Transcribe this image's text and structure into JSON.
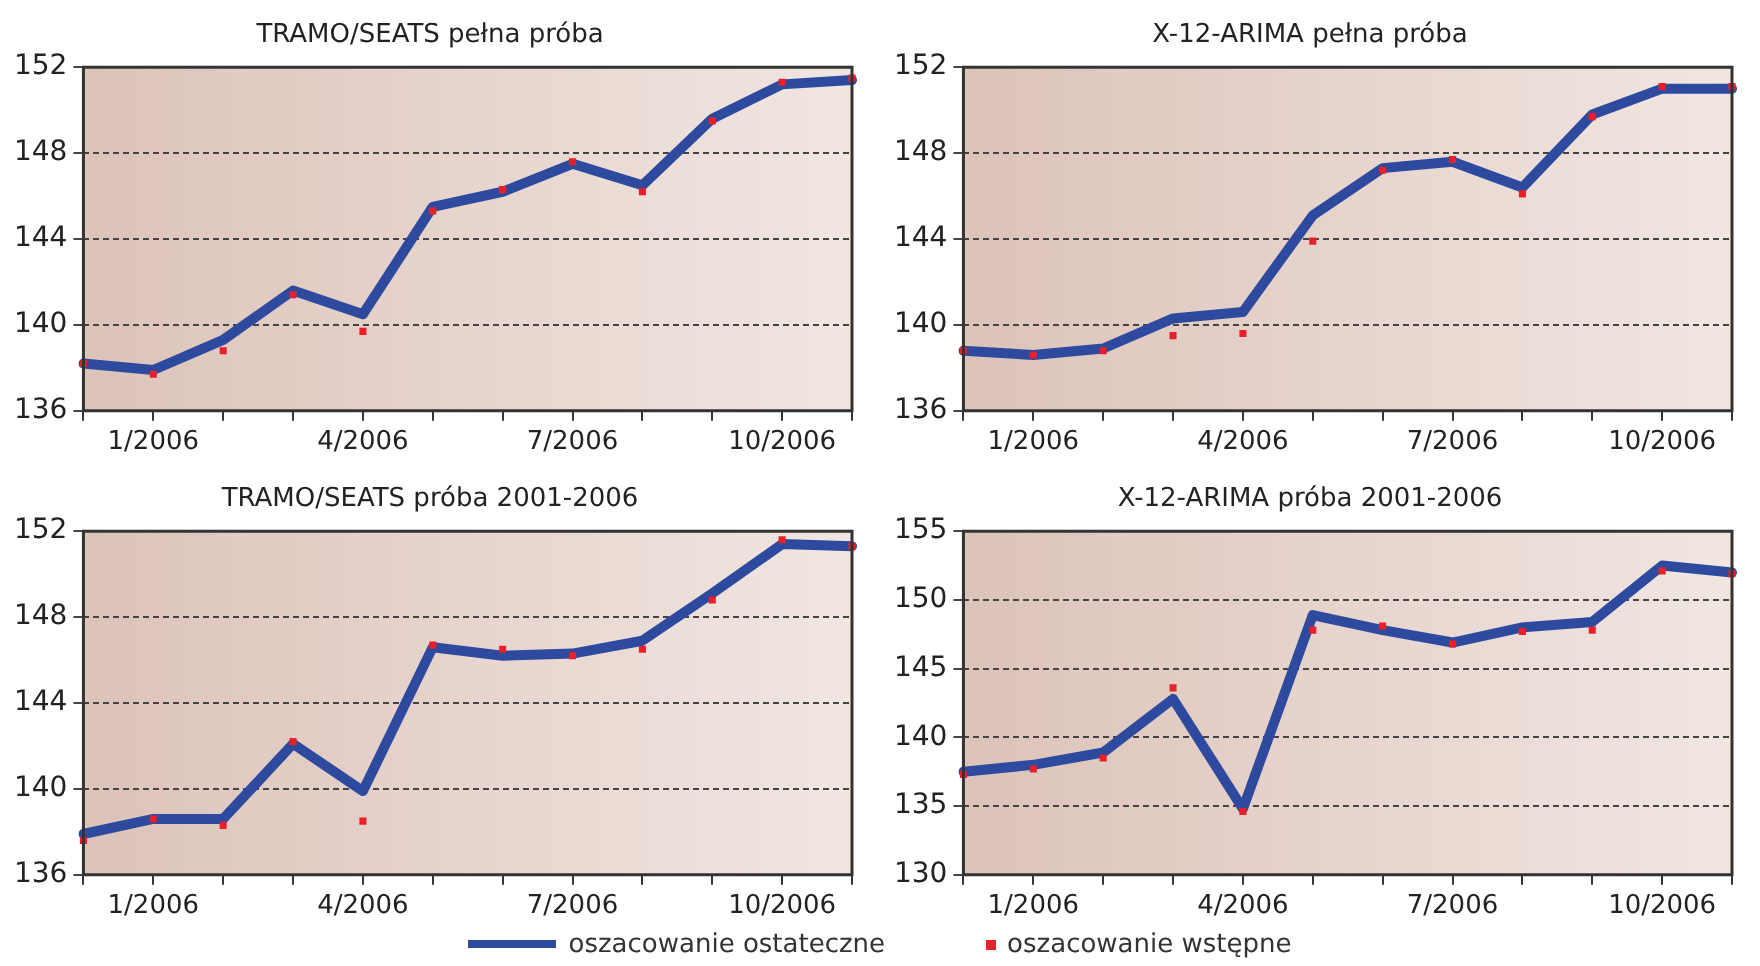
{
  "chart_data": [
    {
      "type": "line",
      "title": "TRAMO/SEATS pełna próba",
      "categories": [
        null,
        "1/2006",
        null,
        null,
        "4/2006",
        null,
        null,
        "7/2006",
        null,
        null,
        "10/2006",
        null
      ],
      "ylim": [
        136,
        152
      ],
      "yticks": [
        136,
        140,
        144,
        148,
        152
      ],
      "grid": "y",
      "series": [
        {
          "type": "line",
          "marker": "none",
          "color": "#2e4a9e",
          "values": [
            138.2,
            137.9,
            139.3,
            141.6,
            140.5,
            145.5,
            146.2,
            147.5,
            146.5,
            149.6,
            151.2,
            151.4
          ]
        },
        {
          "type": "scatter",
          "marker": "square",
          "color": "#e8202a",
          "values": [
            138.2,
            137.7,
            138.8,
            141.4,
            139.7,
            145.3,
            146.3,
            147.6,
            146.2,
            149.5,
            151.3,
            151.5
          ]
        }
      ]
    },
    {
      "type": "line",
      "title": "X-12-ARIMA pełna próba",
      "categories": [
        null,
        "1/2006",
        null,
        null,
        "4/2006",
        null,
        null,
        "7/2006",
        null,
        null,
        "10/2006",
        null
      ],
      "ylim": [
        136,
        152
      ],
      "yticks": [
        136,
        140,
        144,
        148,
        152
      ],
      "grid": "y",
      "series": [
        {
          "type": "line",
          "marker": "none",
          "color": "#2e4a9e",
          "values": [
            138.8,
            138.6,
            138.9,
            140.3,
            140.6,
            145.1,
            147.3,
            147.6,
            146.4,
            149.8,
            151.0,
            151.0
          ]
        },
        {
          "type": "scatter",
          "marker": "square",
          "color": "#e8202a",
          "values": [
            138.8,
            138.6,
            138.8,
            139.5,
            139.6,
            143.9,
            147.2,
            147.7,
            146.1,
            149.7,
            151.1,
            151.1
          ]
        }
      ]
    },
    {
      "type": "line",
      "title": "TRAMO/SEATS próba 2001-2006",
      "categories": [
        null,
        "1/2006",
        null,
        null,
        "4/2006",
        null,
        null,
        "7/2006",
        null,
        null,
        "10/2006",
        null
      ],
      "ylim": [
        136,
        152
      ],
      "yticks": [
        136,
        140,
        144,
        148,
        152
      ],
      "grid": "y",
      "series": [
        {
          "type": "line",
          "marker": "none",
          "color": "#2e4a9e",
          "values": [
            137.9,
            138.6,
            138.6,
            142.1,
            139.9,
            146.6,
            146.2,
            146.3,
            146.9,
            149.1,
            151.4,
            151.3
          ]
        },
        {
          "type": "scatter",
          "marker": "square",
          "color": "#e8202a",
          "values": [
            137.6,
            138.6,
            138.3,
            142.2,
            138.5,
            146.7,
            146.5,
            146.2,
            146.5,
            148.8,
            151.6,
            151.3
          ]
        }
      ]
    },
    {
      "type": "line",
      "title": "X-12-ARIMA próba 2001-2006",
      "categories": [
        null,
        "1/2006",
        null,
        null,
        "4/2006",
        null,
        null,
        "7/2006",
        null,
        null,
        "10/2006",
        null
      ],
      "ylim": [
        130,
        155
      ],
      "yticks": [
        130,
        135,
        140,
        145,
        150,
        155
      ],
      "grid": "y",
      "legend": "bottom",
      "series": [
        {
          "name": "oszacowanie ostateczne",
          "type": "line",
          "marker": "none",
          "color": "#2e4a9e",
          "values": [
            137.5,
            138.0,
            138.9,
            142.8,
            134.8,
            148.9,
            147.8,
            146.9,
            148.0,
            148.4,
            152.5,
            152.0
          ]
        },
        {
          "name": "oszacowanie wstępne",
          "type": "scatter",
          "marker": "square",
          "color": "#e8202a",
          "values": [
            137.3,
            137.7,
            138.5,
            143.6,
            134.6,
            147.8,
            148.1,
            146.8,
            147.7,
            147.8,
            152.1,
            151.9
          ]
        }
      ]
    }
  ]
}
